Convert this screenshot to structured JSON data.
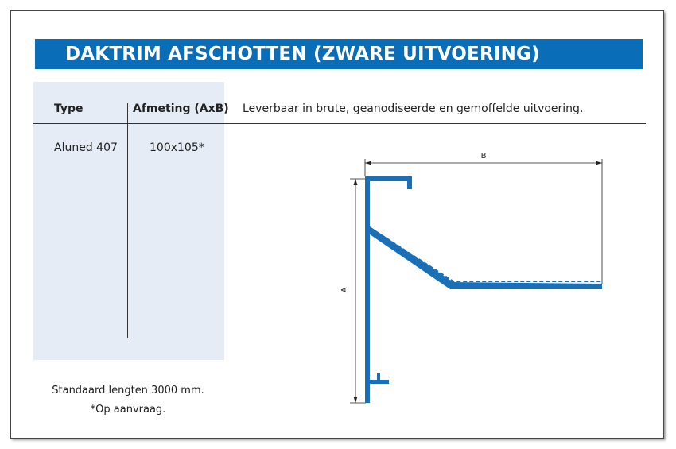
{
  "header": {
    "title": "DAKTRIM AFSCHOTTEN (ZWARE UITVOERING)"
  },
  "table": {
    "headers": [
      "Type",
      "Afmeting (AxB)"
    ],
    "rows": [
      [
        "Aluned 407",
        "100x105*"
      ]
    ]
  },
  "description": "Leverbaar in brute, geanodiseerde en gemoffelde uitvoering.",
  "notes": [
    "Standaard lengten 3000 mm.",
    "*Op aanvraag."
  ],
  "diagram": {
    "labels": {
      "width": "B",
      "height": "A"
    }
  }
}
